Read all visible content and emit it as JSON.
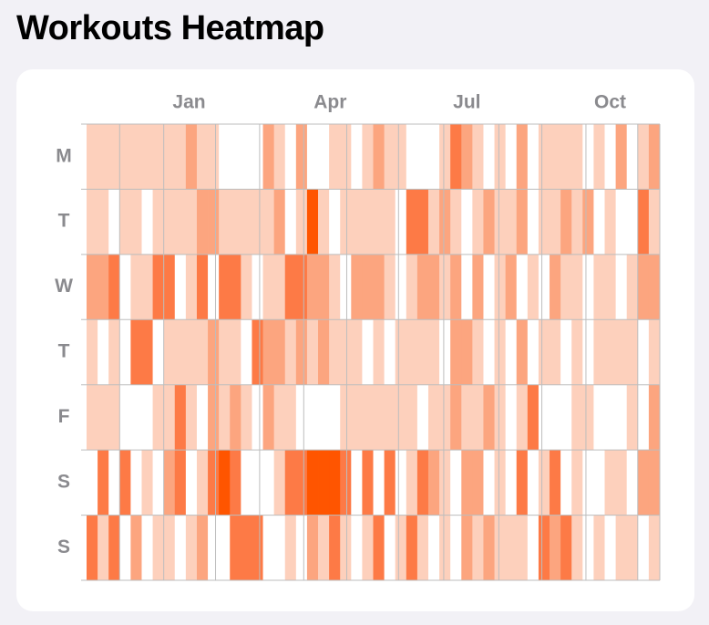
{
  "chart_data": {
    "type": "heatmap",
    "title": "Workouts Heatmap",
    "y_categories": [
      "M",
      "T",
      "W",
      "T",
      "F",
      "S",
      "S"
    ],
    "xlim": [
      0,
      52
    ],
    "xticks": [
      {
        "value": 9.3,
        "label": "Jan"
      },
      {
        "value": 22.1,
        "label": "Apr"
      },
      {
        "value": 34.5,
        "label": "Jul"
      },
      {
        "value": 47.5,
        "label": "Oct"
      }
    ],
    "xgrid": [
      3,
      7,
      11.7,
      15.7,
      19.7,
      23.6,
      28.3,
      32.4,
      37.4,
      41.3,
      45.3,
      50
    ],
    "colors": [
      "#ffffff",
      "#fdd0bc",
      "#fca57f",
      "#fd7a46",
      "#ff5500"
    ],
    "values": [
      [
        1,
        1,
        1,
        1,
        1,
        1,
        1,
        1,
        1,
        2,
        1,
        1,
        0,
        0,
        0,
        0,
        2,
        1,
        0,
        2,
        0,
        0,
        1,
        1,
        0,
        1,
        2,
        1,
        1,
        0,
        0,
        0,
        1,
        3,
        2,
        1,
        0,
        1,
        0,
        2,
        0,
        1,
        1,
        1,
        1,
        0,
        1,
        0,
        2,
        0,
        1,
        2
      ],
      [
        1,
        1,
        0,
        1,
        1,
        0,
        1,
        1,
        1,
        1,
        2,
        2,
        1,
        1,
        1,
        1,
        1,
        2,
        0,
        1,
        4,
        1,
        0,
        1,
        1,
        1,
        1,
        1,
        0,
        3,
        3,
        1,
        2,
        1,
        0,
        1,
        2,
        1,
        1,
        2,
        0,
        1,
        1,
        2,
        1,
        2,
        0,
        1,
        0,
        0,
        3,
        1
      ],
      [
        2,
        2,
        3,
        0,
        1,
        1,
        3,
        3,
        0,
        1,
        3,
        0,
        3,
        3,
        1,
        0,
        1,
        1,
        3,
        3,
        2,
        2,
        1,
        0,
        2,
        2,
        2,
        1,
        0,
        1,
        2,
        2,
        1,
        2,
        0,
        2,
        0,
        1,
        2,
        0,
        1,
        0,
        2,
        1,
        1,
        0,
        1,
        1,
        0,
        1,
        2,
        2
      ],
      [
        1,
        0,
        1,
        0,
        3,
        3,
        0,
        1,
        1,
        1,
        1,
        2,
        1,
        1,
        0,
        3,
        2,
        2,
        1,
        2,
        1,
        2,
        1,
        1,
        1,
        0,
        1,
        0,
        1,
        1,
        1,
        1,
        0,
        2,
        2,
        1,
        0,
        1,
        0,
        2,
        0,
        1,
        1,
        0,
        1,
        0,
        1,
        1,
        1,
        1,
        0,
        1
      ],
      [
        1,
        1,
        1,
        0,
        0,
        0,
        1,
        1,
        3,
        1,
        0,
        2,
        1,
        2,
        1,
        0,
        2,
        1,
        1,
        0,
        0,
        0,
        0,
        1,
        1,
        1,
        1,
        1,
        1,
        1,
        0,
        1,
        1,
        2,
        1,
        1,
        2,
        1,
        0,
        1,
        3,
        0,
        0,
        0,
        1,
        1,
        0,
        0,
        0,
        1,
        0,
        2
      ],
      [
        0,
        3,
        0,
        3,
        0,
        1,
        0,
        2,
        3,
        0,
        1,
        3,
        4,
        3,
        0,
        0,
        0,
        1,
        3,
        3,
        4,
        4,
        4,
        3,
        0,
        3,
        0,
        3,
        0,
        1,
        3,
        2,
        1,
        0,
        2,
        2,
        0,
        1,
        0,
        3,
        0,
        1,
        3,
        0,
        1,
        0,
        0,
        1,
        1,
        0,
        2,
        2
      ],
      [
        3,
        1,
        3,
        0,
        2,
        0,
        1,
        1,
        0,
        1,
        2,
        0,
        0,
        3,
        3,
        3,
        0,
        0,
        1,
        0,
        2,
        1,
        3,
        1,
        0,
        1,
        3,
        0,
        1,
        3,
        1,
        0,
        1,
        0,
        2,
        1,
        2,
        1,
        1,
        1,
        0,
        3,
        2,
        3,
        1,
        0,
        1,
        0,
        1,
        1,
        0,
        1
      ]
    ]
  }
}
